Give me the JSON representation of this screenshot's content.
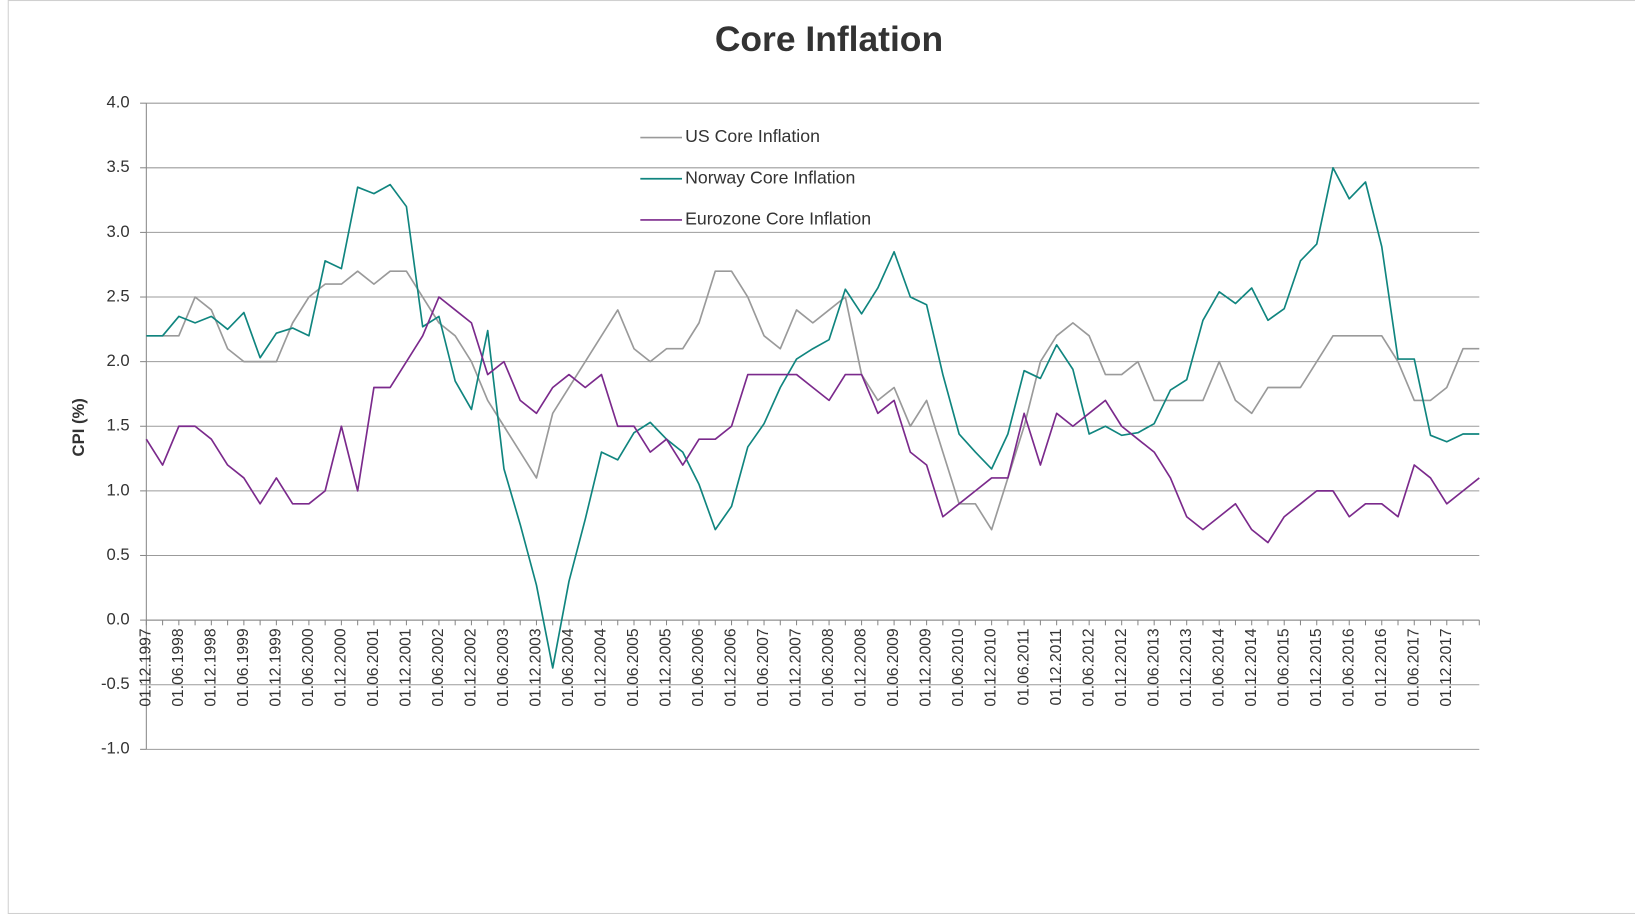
{
  "chart_data": {
    "type": "line",
    "title": "Core Inflation",
    "y_label": "CPI (%)",
    "categories": [
      "01.12.1997",
      null,
      "01.06.1998",
      null,
      "01.12.1998",
      null,
      "01.06.1999",
      null,
      "01.12.1999",
      null,
      "01.06.2000",
      null,
      "01.12.2000",
      null,
      "01.06.2001",
      null,
      "01.12.2001",
      null,
      "01.06.2002",
      null,
      "01.12.2002",
      null,
      "01.06.2003",
      null,
      "01.12.2003",
      null,
      "01.06.2004",
      null,
      "01.12.2004",
      null,
      "01.06.2005",
      null,
      "01.12.2005",
      null,
      "01.06.2006",
      null,
      "01.12.2006",
      null,
      "01.06.2007",
      null,
      "01.12.2007",
      null,
      "01.06.2008",
      null,
      "01.12.2008",
      null,
      "01.06.2009",
      null,
      "01.12.2009",
      null,
      "01.06.2010",
      null,
      "01.12.2010",
      null,
      "01.06.2011",
      null,
      "01.12.2011",
      null,
      "01.06.2012",
      null,
      "01.12.2012",
      null,
      "01.06.2013",
      null,
      "01.12.2013",
      null,
      "01.06.2014",
      null,
      "01.12.2014",
      null,
      "01.06.2015",
      null,
      "01.12.2015",
      null,
      "01.06.2016",
      null,
      "01.12.2016",
      null,
      "01.06.2017",
      null,
      "01.12.2017",
      null,
      null
    ],
    "series": [
      {
        "name": "US Core Inflation",
        "color": "#9a9a9a",
        "values": [
          2.2,
          2.2,
          2.2,
          2.5,
          2.4,
          2.1,
          2.0,
          2.0,
          2.0,
          2.3,
          2.5,
          2.6,
          2.6,
          2.7,
          2.6,
          2.7,
          2.7,
          2.5,
          2.3,
          2.2,
          2.0,
          1.7,
          1.5,
          1.3,
          1.1,
          1.6,
          1.8,
          2.0,
          2.2,
          2.4,
          2.1,
          2.0,
          2.1,
          2.1,
          2.3,
          2.7,
          2.7,
          2.5,
          2.2,
          2.1,
          2.4,
          2.3,
          2.4,
          2.5,
          1.9,
          1.7,
          1.8,
          1.5,
          1.7,
          1.3,
          0.9,
          0.9,
          0.7,
          1.1,
          1.5,
          2.0,
          2.2,
          2.3,
          2.2,
          1.9,
          1.9,
          2.0,
          1.7,
          1.7,
          1.7,
          1.7,
          2.0,
          1.7,
          1.6,
          1.8,
          1.8,
          1.8,
          2.0,
          2.2,
          2.2,
          2.2,
          2.2,
          2.0,
          1.7,
          1.7,
          1.8,
          2.1,
          2.1
        ]
      },
      {
        "name": "Norway Core Inflation",
        "color": "#10857f",
        "values": [
          2.2,
          2.2,
          2.35,
          2.3,
          2.35,
          2.25,
          2.38,
          2.03,
          2.22,
          2.26,
          2.2,
          2.78,
          2.72,
          3.35,
          3.3,
          3.37,
          3.2,
          2.27,
          2.35,
          1.85,
          1.63,
          2.24,
          1.17,
          0.74,
          0.27,
          -0.37,
          0.3,
          0.78,
          1.3,
          1.24,
          1.45,
          1.53,
          1.4,
          1.3,
          1.05,
          0.7,
          0.88,
          1.34,
          1.52,
          1.8,
          2.02,
          2.1,
          2.17,
          2.56,
          2.37,
          2.57,
          2.85,
          2.5,
          2.44,
          1.9,
          1.44,
          1.3,
          1.17,
          1.44,
          1.93,
          1.87,
          2.13,
          1.94,
          1.44,
          1.5,
          1.43,
          1.45,
          1.52,
          1.78,
          1.86,
          2.32,
          2.54,
          2.45,
          2.57,
          2.32,
          2.41,
          2.78,
          2.91,
          3.5,
          3.26,
          3.39,
          2.89,
          2.02,
          2.02,
          1.43,
          1.38,
          1.44,
          1.44
        ]
      },
      {
        "name": "Eurozone Core Inflation",
        "color": "#7b2a8c",
        "values": [
          1.4,
          1.2,
          1.5,
          1.5,
          1.4,
          1.2,
          1.1,
          0.9,
          1.1,
          0.9,
          0.9,
          1.0,
          1.5,
          1.0,
          1.8,
          1.8,
          2.0,
          2.2,
          2.5,
          2.4,
          2.3,
          1.9,
          2.0,
          1.7,
          1.6,
          1.8,
          1.9,
          1.8,
          1.9,
          1.5,
          1.5,
          1.3,
          1.4,
          1.2,
          1.4,
          1.4,
          1.5,
          1.9,
          1.9,
          1.9,
          1.9,
          1.8,
          1.7,
          1.9,
          1.9,
          1.6,
          1.7,
          1.3,
          1.2,
          0.8,
          0.9,
          1.0,
          1.1,
          1.1,
          1.6,
          1.2,
          1.6,
          1.5,
          1.6,
          1.7,
          1.5,
          1.4,
          1.3,
          1.1,
          0.8,
          0.7,
          0.8,
          0.9,
          0.7,
          0.6,
          0.8,
          0.9,
          1.0,
          1.0,
          0.8,
          0.9,
          0.9,
          0.8,
          1.2,
          1.1,
          0.9,
          1.0,
          1.1
        ]
      }
    ],
    "ylim": [
      -1,
      4
    ],
    "yticks": [
      {
        "value": -1,
        "label": "-1.0"
      },
      -0.5,
      {
        "value": 0,
        "label": "0.0"
      },
      0.5,
      {
        "value": 1,
        "label": "1.0"
      },
      1.5,
      {
        "value": 2,
        "label": "2.0"
      },
      2.5,
      {
        "value": 3,
        "label": "3.0"
      },
      3.5,
      {
        "value": 4,
        "label": "4.0"
      }
    ],
    "grid": true,
    "legend": "top"
  }
}
